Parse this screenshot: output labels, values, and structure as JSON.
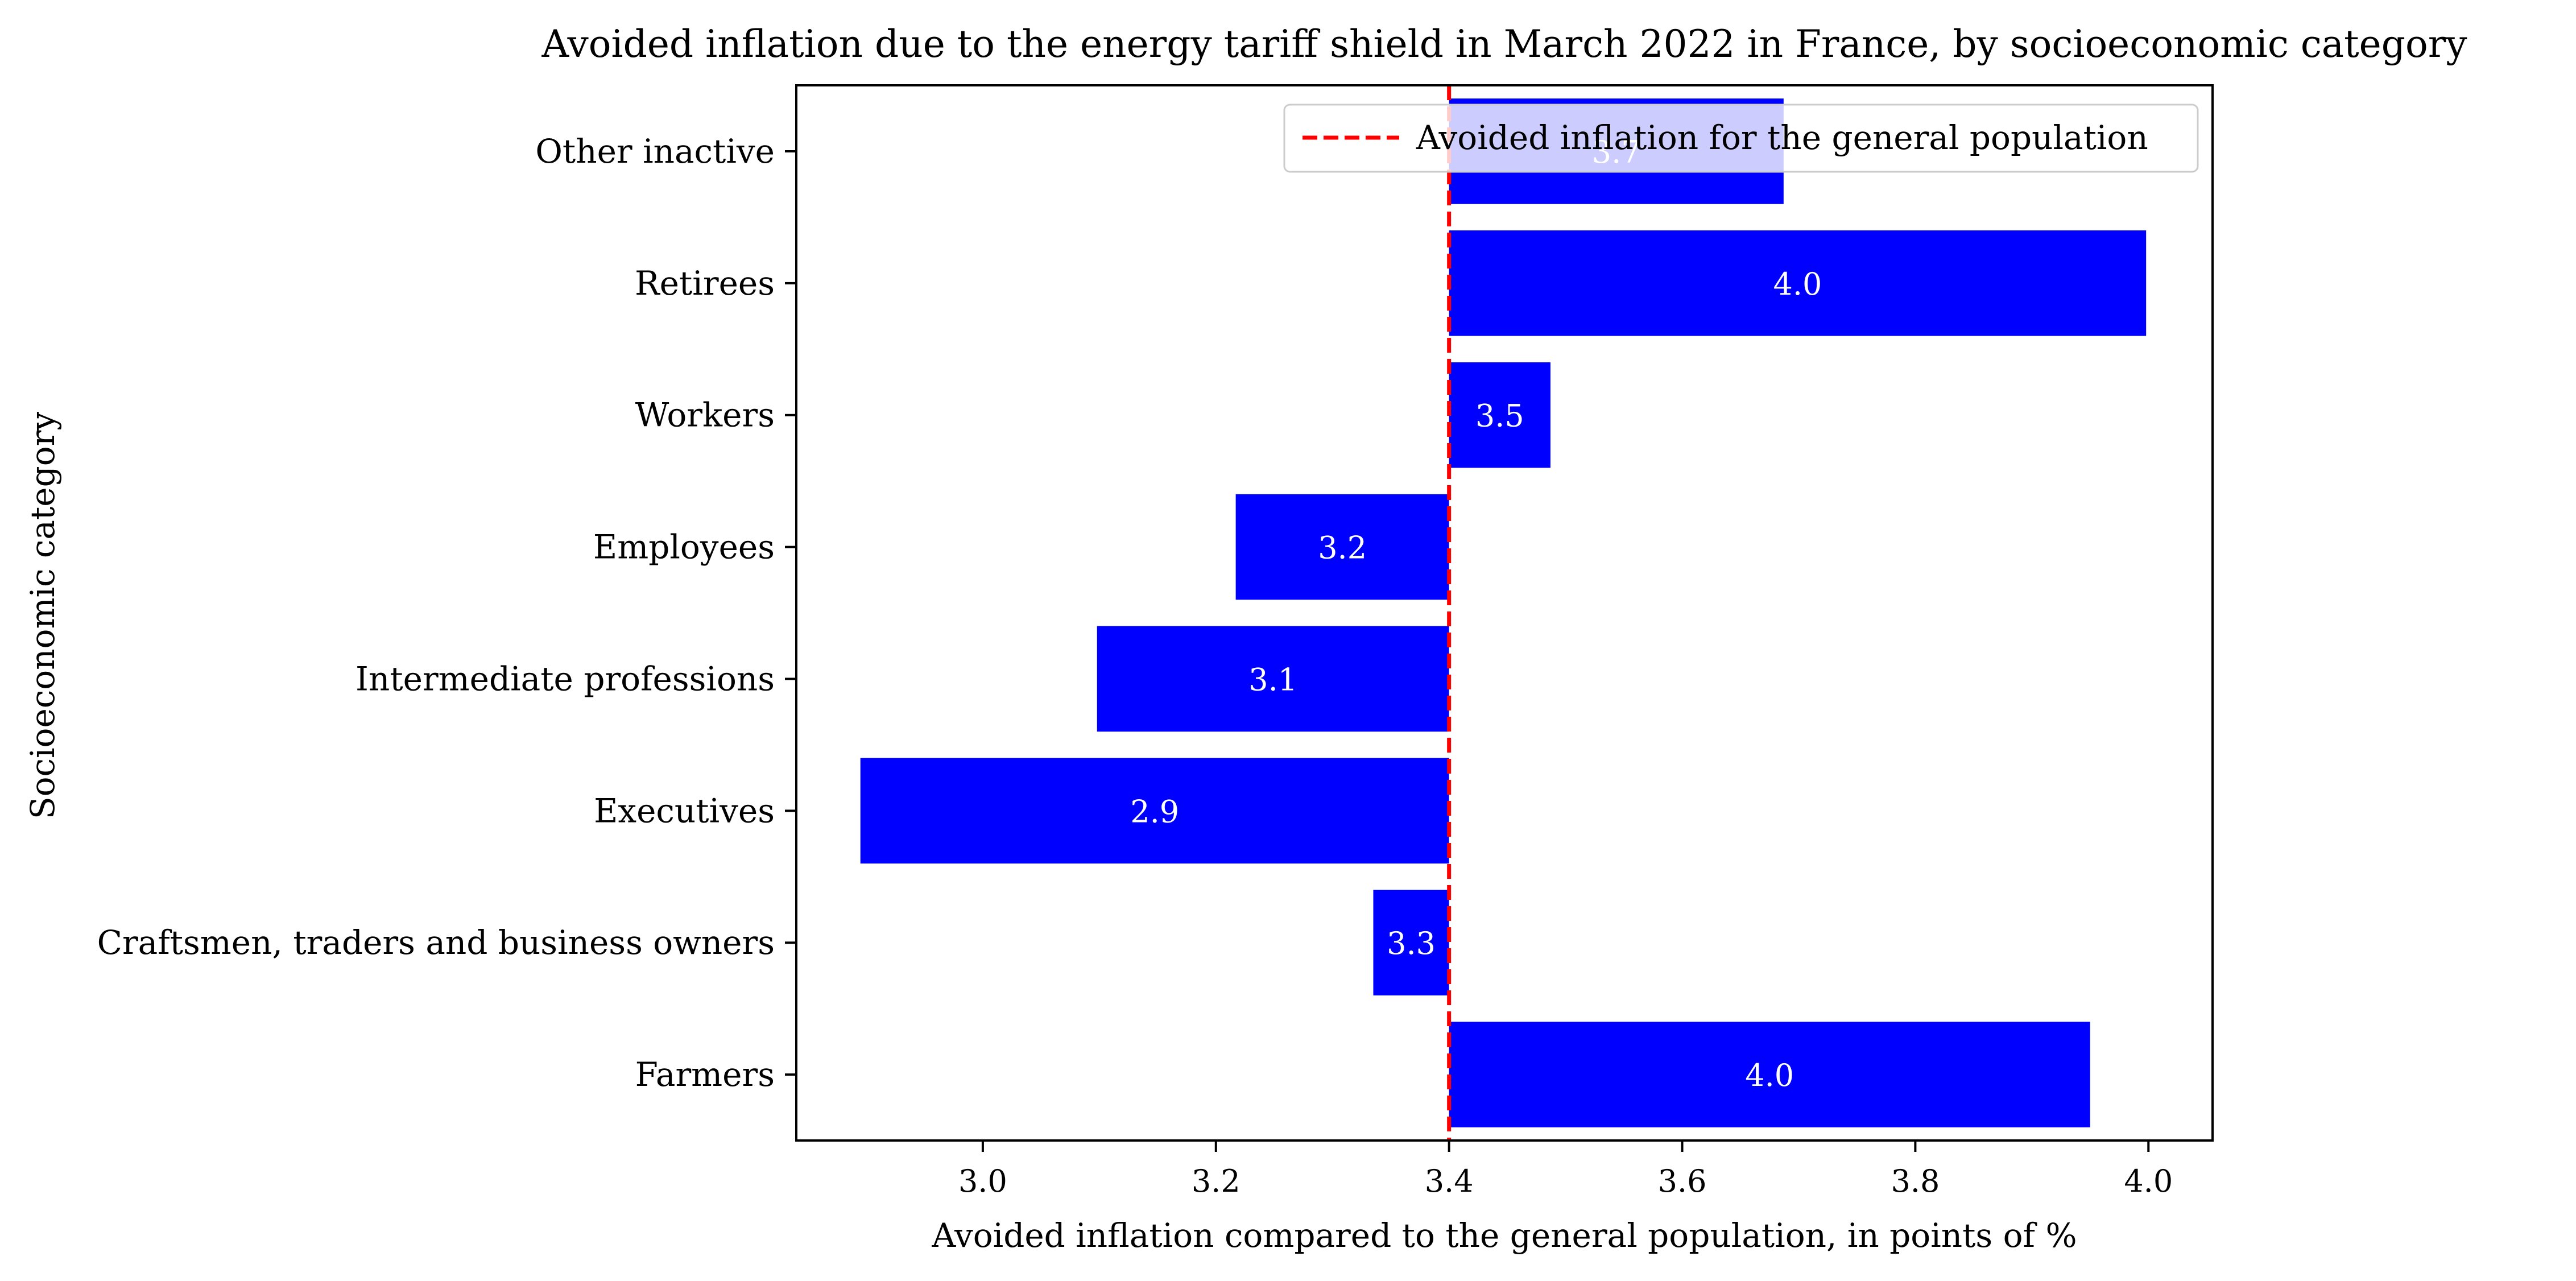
{
  "chart_data": {
    "type": "bar",
    "orientation": "horizontal",
    "title": "Avoided inflation due to the energy tariff shield in March 2022 in France, by socioeconomic category",
    "xlabel": "Avoided inflation compared to the general population, in points of %",
    "ylabel": "Socioeconomic category",
    "baseline": 3.4,
    "xlim": [
      2.84,
      4.055
    ],
    "xticks": [
      3.0,
      3.2,
      3.4,
      3.6,
      3.8,
      4.0
    ],
    "xtick_labels": [
      "3.0",
      "3.2",
      "3.4",
      "3.6",
      "3.8",
      "4.0"
    ],
    "categories": [
      "Farmers",
      "Craftsmen, traders and business owners",
      "Executives",
      "Intermediate professions",
      "Employees",
      "Workers",
      "Retirees",
      "Other inactive"
    ],
    "values": [
      3.95,
      3.335,
      2.895,
      3.098,
      3.217,
      3.487,
      3.998,
      3.687
    ],
    "value_labels": [
      "4.0",
      "3.3",
      "2.9",
      "3.1",
      "3.2",
      "3.5",
      "4.0",
      "3.7"
    ],
    "bar_color": "#0000ff",
    "bar_label_color": "#ffffff",
    "reference_line": {
      "value": 3.4,
      "label": "Avoided inflation for the general population",
      "color": "#ff0000",
      "style": "dashed"
    },
    "legend": {
      "position": "top-right"
    },
    "grid": false
  }
}
